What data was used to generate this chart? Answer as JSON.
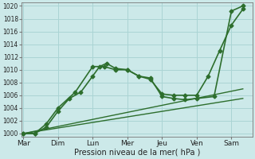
{
  "title": "",
  "xlabel": "Pression niveau de la mer( hPa )",
  "ylabel": "",
  "background_color": "#cce9e9",
  "grid_color": "#aad4d4",
  "line_color": "#2d6e2d",
  "x_labels": [
    "Mar",
    "Dim",
    "Lun",
    "Mer",
    "Jeu",
    "Ven",
    "Sam"
  ],
  "x_positions": [
    0,
    1,
    2,
    3,
    4,
    5,
    6
  ],
  "ylim": [
    999.5,
    1020.5
  ],
  "yticks": [
    1000,
    1002,
    1004,
    1006,
    1008,
    1010,
    1012,
    1014,
    1016,
    1018,
    1020
  ],
  "series": [
    {
      "x": [
        0,
        0.33,
        0.66,
        1.0,
        1.33,
        1.66,
        2.0,
        2.2,
        2.4,
        2.66,
        3.0,
        3.33,
        3.66,
        4.0,
        4.33,
        4.66,
        5.0,
        5.33,
        5.66,
        6.0,
        6.33
      ],
      "y": [
        1000.0,
        1000.0,
        1001.0,
        1003.5,
        1005.5,
        1006.5,
        1009.0,
        1010.5,
        1011.0,
        1010.2,
        1010.0,
        1009.0,
        1008.5,
        1006.2,
        1006.0,
        1006.0,
        1006.0,
        1009.0,
        1013.0,
        1017.0,
        1019.5
      ],
      "marker": "D",
      "markersize": 2.5,
      "linewidth": 1.2
    },
    {
      "x": [
        0,
        0.33,
        0.66,
        1.0,
        1.5,
        2.0,
        2.33,
        2.66,
        3.0,
        3.33,
        3.66,
        4.0,
        4.33,
        4.66,
        5.0,
        5.5,
        6.0,
        6.33
      ],
      "y": [
        1000.0,
        1000.0,
        1001.5,
        1004.0,
        1006.5,
        1010.5,
        1010.5,
        1010.0,
        1010.0,
        1009.0,
        1008.7,
        1005.8,
        1005.5,
        1005.3,
        1005.5,
        1005.8,
        1019.2,
        1020.0
      ],
      "marker": "D",
      "markersize": 2.5,
      "linewidth": 1.2
    },
    {
      "x": [
        0,
        6.33
      ],
      "y": [
        1000.0,
        1005.5
      ],
      "marker": null,
      "markersize": 0,
      "linewidth": 1.0
    },
    {
      "x": [
        0,
        6.33
      ],
      "y": [
        1000.0,
        1007.0
      ],
      "marker": null,
      "markersize": 0,
      "linewidth": 1.0
    }
  ]
}
